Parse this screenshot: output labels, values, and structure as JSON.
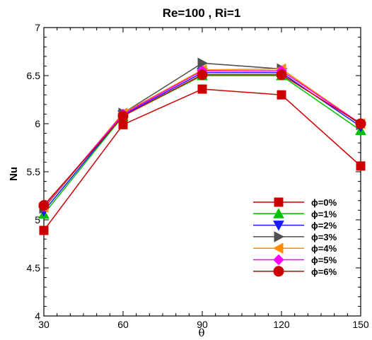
{
  "chart_data": {
    "type": "line",
    "title": "Re=100 , Ri=1",
    "xlabel": "θ",
    "ylabel": "Nu",
    "x": [
      30,
      60,
      90,
      120,
      150
    ],
    "x_ticks": [
      "30",
      "60",
      "90",
      "120",
      "150"
    ],
    "y_ticks": [
      "4",
      "4.5",
      "5",
      "5.5",
      "6",
      "6.5",
      "7"
    ],
    "xlim": [
      30,
      150
    ],
    "ylim": [
      4,
      7
    ],
    "grid": false,
    "legend_position": "bottom-right",
    "series": [
      {
        "name": "ϕ=0%",
        "marker": "square",
        "color": "#cc0000",
        "values": [
          4.89,
          5.99,
          6.36,
          6.3,
          5.56
        ]
      },
      {
        "name": "ϕ=1%",
        "marker": "triangle-up",
        "color": "#00c000",
        "values": [
          5.06,
          6.08,
          6.5,
          6.5,
          5.93
        ]
      },
      {
        "name": "ϕ=2%",
        "marker": "triangle-down",
        "color": "#1a1aff",
        "values": [
          5.09,
          6.09,
          6.53,
          6.53,
          5.97
        ]
      },
      {
        "name": "ϕ=3%",
        "marker": "triangle-right",
        "color": "#505050",
        "values": [
          5.12,
          6.11,
          6.63,
          6.57,
          5.99
        ]
      },
      {
        "name": "ϕ=4%",
        "marker": "triangle-left",
        "color": "#ff8c00",
        "values": [
          5.13,
          6.11,
          6.56,
          6.57,
          6.0
        ]
      },
      {
        "name": "ϕ=5%",
        "marker": "diamond",
        "color": "#ff00ff",
        "values": [
          5.14,
          6.1,
          6.55,
          6.55,
          6.0
        ]
      },
      {
        "name": "ϕ=6%",
        "marker": "circle",
        "color": "#cc0000",
        "values": [
          5.15,
          6.08,
          6.51,
          6.51,
          6.0
        ]
      }
    ]
  }
}
